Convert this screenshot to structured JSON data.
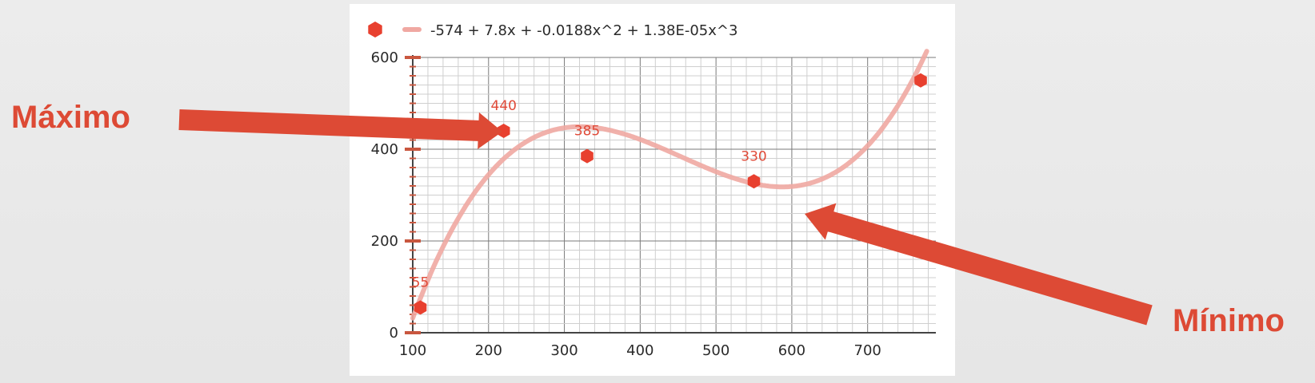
{
  "chart_data": {
    "type": "scatter",
    "legend": {
      "placement": "top-left",
      "trendline_label": "-574 + 7.8x + -0.0188x^2 + 1.38E-05x^3"
    },
    "x_ticks": [
      "100",
      "200",
      "300",
      "400",
      "500",
      "600",
      "700"
    ],
    "y_ticks": [
      "0",
      "200",
      "400",
      "600"
    ],
    "xlim": [
      100,
      790
    ],
    "ylim": [
      0,
      600
    ],
    "grid": true,
    "points": [
      {
        "x": 110,
        "y": 55,
        "label": "55"
      },
      {
        "x": 220,
        "y": 440,
        "label": "440"
      },
      {
        "x": 330,
        "y": 385,
        "label": "385"
      },
      {
        "x": 550,
        "y": 330,
        "label": "330"
      },
      {
        "x": 770,
        "y": 550,
        "label": ""
      }
    ],
    "trendline": {
      "type": "polynomial",
      "coefficients": [
        -574,
        7.8,
        -0.0188,
        1.38e-05
      ]
    },
    "annotations": [
      {
        "text": "Máximo",
        "points_to": "maximum"
      },
      {
        "text": "Mínimo",
        "points_to": "minimum"
      }
    ],
    "colors": {
      "marker": "#e8402f",
      "trendline": "#f0a8a2",
      "arrow": "#dd4a35",
      "data_label": "#e04a38"
    }
  }
}
